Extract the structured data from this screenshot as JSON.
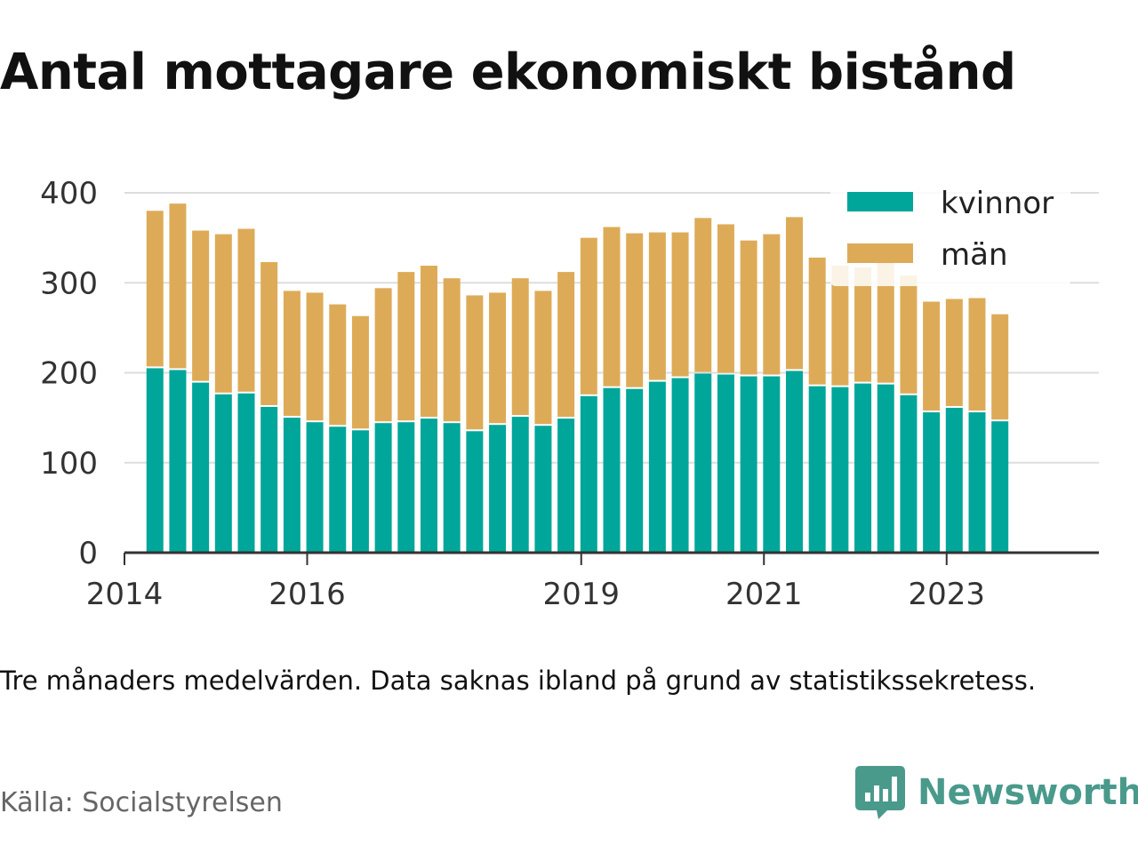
{
  "title": "Antal mottagare ekonomiskt bistånd",
  "note": "Tre månaders medelvärden. Data saknas ibland på grund av statistikssekretess.",
  "source": "Källa: Socialstyrelsen",
  "brand": {
    "name": "Newsworthy",
    "logo_icon": "bar-chart-speech-bubble-icon"
  },
  "colors": {
    "kvinnor": "#00a69a",
    "man": "#ddab58",
    "grid": "#dddddd",
    "axis": "#333333",
    "brand": "#4a9a8c"
  },
  "chart_data": {
    "type": "bar",
    "stacked": true,
    "grid": true,
    "legend_position": "top-right",
    "ylim": [
      0,
      400
    ],
    "yticks": [
      0,
      100,
      200,
      300,
      400
    ],
    "xlim": [
      "2014-01",
      "2024-09"
    ],
    "xticks": [
      {
        "label": "2014",
        "date": "2014-01"
      },
      {
        "label": "2016",
        "date": "2016-01"
      },
      {
        "label": "2019",
        "date": "2019-01"
      },
      {
        "label": "2021",
        "date": "2021-01"
      },
      {
        "label": "2023",
        "date": "2023-01"
      }
    ],
    "x": [
      "2014-05",
      "2014-08",
      "2014-11",
      "2015-02",
      "2015-05",
      "2015-08",
      "2015-11",
      "2016-02",
      "2016-05",
      "2016-08",
      "2016-11",
      "2017-02",
      "2017-05",
      "2017-08",
      "2017-11",
      "2018-02",
      "2018-05",
      "2018-08",
      "2018-11",
      "2019-02",
      "2019-05",
      "2019-08",
      "2019-11",
      "2020-02",
      "2020-05",
      "2020-08",
      "2020-11",
      "2021-02",
      "2021-05",
      "2021-08",
      "2021-11",
      "2022-02",
      "2022-05",
      "2022-08",
      "2022-11",
      "2023-02",
      "2023-05",
      "2023-08"
    ],
    "series": [
      {
        "name": "kvinnor",
        "values": [
          206,
          204,
          190,
          177,
          178,
          163,
          151,
          146,
          141,
          137,
          145,
          146,
          150,
          145,
          136,
          143,
          152,
          142,
          150,
          175,
          184,
          183,
          191,
          195,
          200,
          199,
          197,
          197,
          203,
          186,
          185,
          189,
          188,
          176,
          157,
          162,
          157,
          147
        ]
      },
      {
        "name": "män",
        "values": [
          174,
          184,
          168,
          177,
          182,
          160,
          140,
          143,
          135,
          126,
          149,
          166,
          169,
          160,
          150,
          146,
          153,
          149,
          162,
          175,
          178,
          172,
          165,
          161,
          172,
          166,
          150,
          157,
          170,
          142,
          134,
          128,
          150,
          132,
          122,
          120,
          126,
          118
        ]
      }
    ]
  }
}
